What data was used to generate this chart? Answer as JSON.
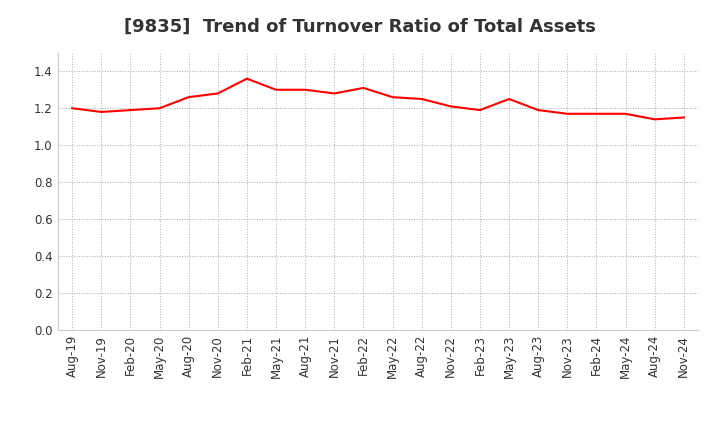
{
  "title": "[9835]  Trend of Turnover Ratio of Total Assets",
  "x_labels": [
    "Aug-19",
    "Nov-19",
    "Feb-20",
    "May-20",
    "Aug-20",
    "Nov-20",
    "Feb-21",
    "May-21",
    "Aug-21",
    "Nov-21",
    "Feb-22",
    "May-22",
    "Aug-22",
    "Nov-22",
    "Feb-23",
    "May-23",
    "Aug-23",
    "Nov-23",
    "Feb-24",
    "May-24",
    "Aug-24",
    "Nov-24"
  ],
  "values": [
    1.2,
    1.18,
    1.19,
    1.2,
    1.26,
    1.28,
    1.36,
    1.3,
    1.3,
    1.28,
    1.31,
    1.26,
    1.25,
    1.21,
    1.19,
    1.25,
    1.19,
    1.17,
    1.17,
    1.17,
    1.14,
    1.15
  ],
  "line_color": "#ff0000",
  "line_width": 1.5,
  "ylim": [
    0.0,
    1.5
  ],
  "yticks": [
    0.0,
    0.2,
    0.4,
    0.6,
    0.8,
    1.0,
    1.2,
    1.4
  ],
  "background_color": "#ffffff",
  "grid_color": "#aaaaaa",
  "title_fontsize": 13,
  "tick_fontsize": 8.5,
  "title_color": "#333333"
}
